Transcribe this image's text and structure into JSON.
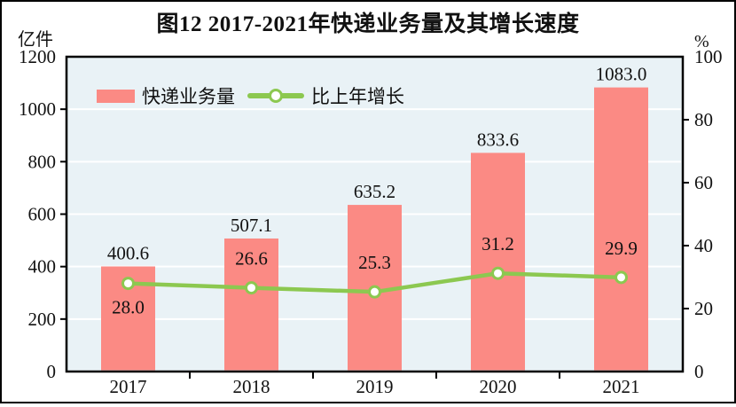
{
  "title": "图12  2017-2021年快递业务量及其增长速度",
  "axes": {
    "left_unit": "亿件",
    "right_unit": "%"
  },
  "legend": {
    "bar": {
      "label": "快递业务量"
    },
    "line": {
      "label": "比上年增长"
    }
  },
  "colors": {
    "bar": "#FB8A84",
    "line": "#8CC850",
    "plot_bg": "#E9F2F6",
    "grid": "#FFFFFF",
    "axis": "#000000",
    "text": "#111111"
  },
  "chart_data": {
    "type": "bar",
    "subtype": "bar-line-combo",
    "title": "图12  2017-2021年快递业务量及其增长速度",
    "categories": [
      "2017",
      "2018",
      "2019",
      "2020",
      "2021"
    ],
    "series": [
      {
        "name": "快递业务量",
        "type": "bar",
        "axis": "left",
        "unit": "亿件",
        "values": [
          400.6,
          507.1,
          635.2,
          833.6,
          1083.0
        ],
        "value_labels": [
          "400.6",
          "507.1",
          "635.2",
          "833.6",
          "1083.0"
        ]
      },
      {
        "name": "比上年增长",
        "type": "line",
        "axis": "right",
        "unit": "%",
        "values": [
          28.0,
          26.6,
          25.3,
          31.2,
          29.9
        ],
        "value_labels": [
          "28.0",
          "26.6",
          "25.3",
          "31.2",
          "29.9"
        ],
        "label_positions": [
          "below",
          "above",
          "above",
          "above",
          "above"
        ]
      }
    ],
    "left_axis": {
      "unit": "亿件",
      "min": 0,
      "max": 1200,
      "ticks": [
        0,
        200,
        400,
        600,
        800,
        1000,
        1200
      ]
    },
    "right_axis": {
      "unit": "%",
      "min": 0,
      "max": 100,
      "ticks": [
        0,
        20,
        40,
        60,
        80,
        100
      ]
    },
    "grid": true,
    "legend_position": "top-left-inside"
  }
}
